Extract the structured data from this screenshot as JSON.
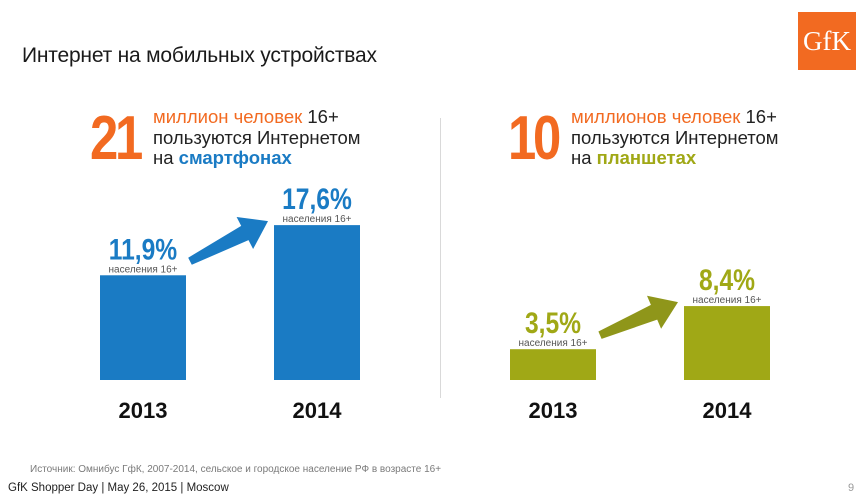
{
  "title": "Интернет на мобильных устройствах",
  "logo": "GfK",
  "colors": {
    "orange": "#f26a21",
    "blue": "#1a7bc4",
    "olive": "#a0a816",
    "olive_arrow": "#8f961a"
  },
  "panels": {
    "smartphones": {
      "big_number": "21",
      "line1_colored": "миллион человек",
      "line1_tail": " 16+",
      "line2": "пользуются Интернетом",
      "line3_prefix": "на ",
      "line3_highlight": "смартфонах"
    },
    "tablets": {
      "big_number": "10",
      "line1_colored": "миллионов человек",
      "line1_tail": " 16+",
      "line2": "пользуются Интернетом",
      "line3_prefix": "на ",
      "line3_highlight": "планшетах"
    }
  },
  "chart_data": [
    {
      "type": "bar",
      "name": "smartphones",
      "categories": [
        "2013",
        "2014"
      ],
      "values": [
        11.9,
        17.6
      ],
      "data_labels": [
        "11,9%",
        "17,6%"
      ],
      "sub_labels": [
        "населения 16+",
        "населения 16+"
      ],
      "color": "#1a7bc4",
      "ylim": [
        0,
        20
      ]
    },
    {
      "type": "bar",
      "name": "tablets",
      "categories": [
        "2013",
        "2014"
      ],
      "values": [
        3.5,
        8.4
      ],
      "data_labels": [
        "3,5%",
        "8,4%"
      ],
      "sub_labels": [
        "населения 16+",
        "населения 16+"
      ],
      "color": "#a0a816",
      "ylim": [
        0,
        20
      ]
    }
  ],
  "footer": {
    "source": "Источник: Омнибус ГфК, 2007-2014, сельское и городское население РФ в возрасте 16+",
    "event": "GfK Shopper Day | May 26, 2015 | Moscow",
    "page": "9"
  }
}
